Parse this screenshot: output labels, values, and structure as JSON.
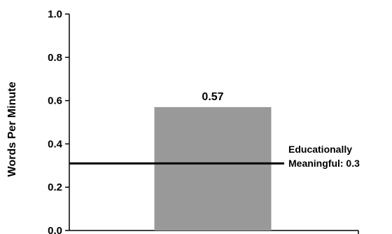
{
  "chart_data": {
    "type": "bar",
    "categories": [
      ""
    ],
    "values": [
      0.57
    ],
    "data_labels": [
      "0.57"
    ],
    "ylabel": "Words Per Minute",
    "ylim": [
      0,
      1.0
    ],
    "yticks": [
      "0.0",
      "0.2",
      "0.4",
      "0.6",
      "0.8",
      "1.0"
    ],
    "grid": false,
    "bar_color": "#999999",
    "reference_line": {
      "value": 0.31,
      "label_line1": "Educationally",
      "label_line2": "Meaningful: 0.3",
      "color": "#000000"
    }
  }
}
